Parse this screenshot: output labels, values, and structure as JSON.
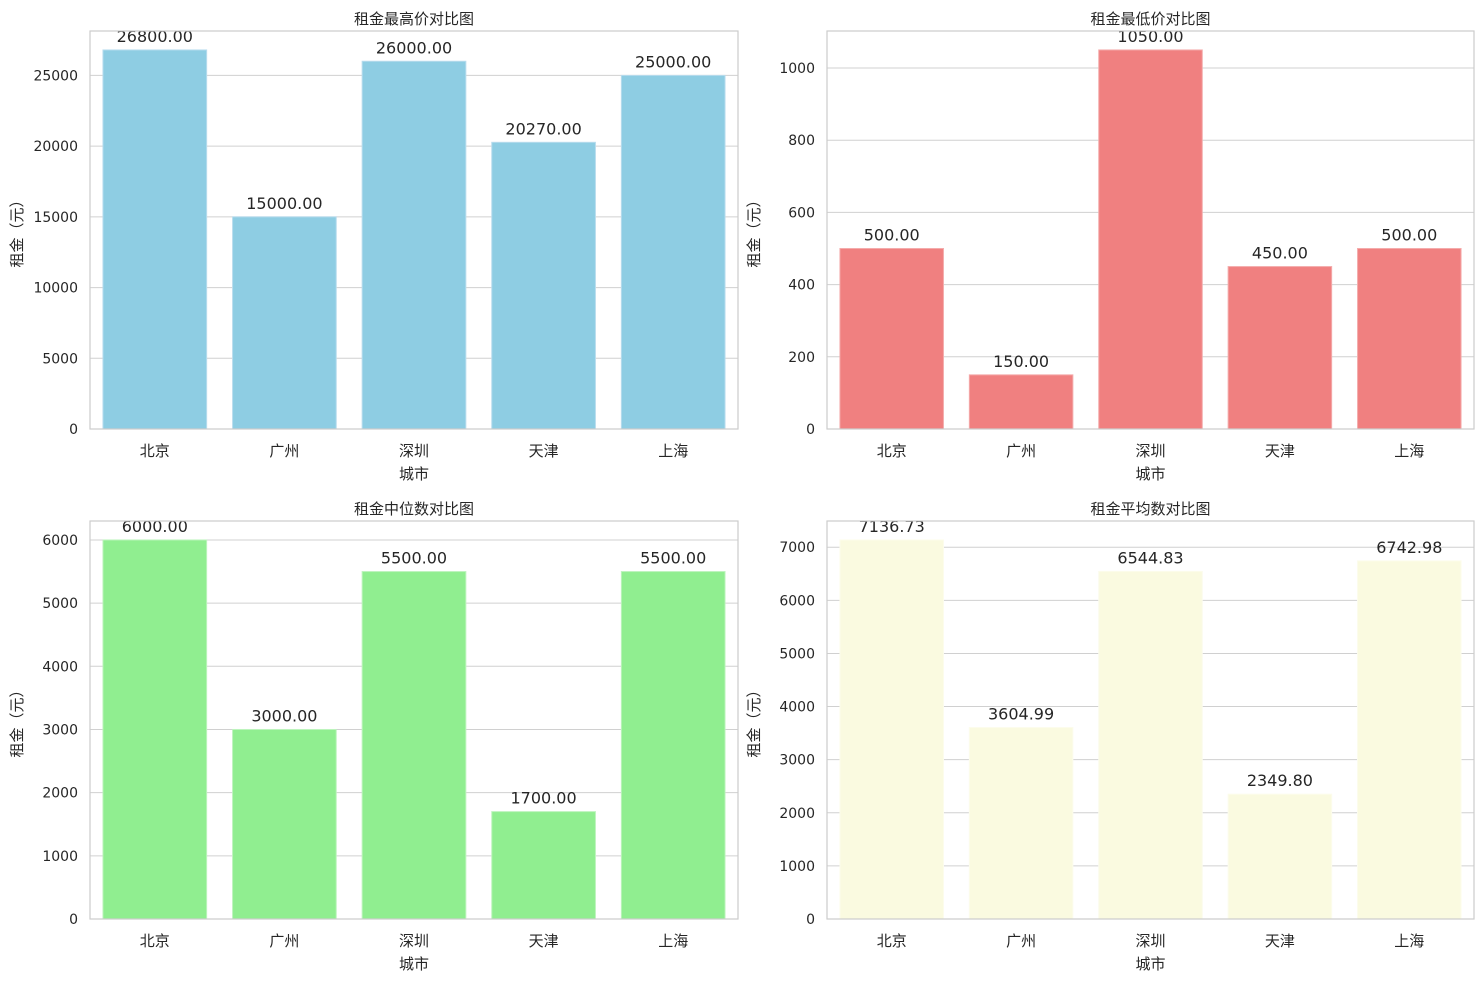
{
  "chart_data": [
    {
      "type": "bar",
      "title": "租金最高价对比图",
      "xlabel": "城市",
      "ylabel": "租金（元）",
      "categories": [
        "北京",
        "广州",
        "深圳",
        "天津",
        "上海"
      ],
      "values": [
        26800.0,
        15000.0,
        26000.0,
        20270.0,
        25000.0
      ],
      "value_labels": [
        "26800.00",
        "15000.00",
        "26000.00",
        "20270.00",
        "25000.00"
      ],
      "ylim": [
        0,
        28140
      ],
      "yticks": [
        0,
        5000,
        10000,
        15000,
        20000,
        25000
      ],
      "grid": true,
      "color": "#8ecde3"
    },
    {
      "type": "bar",
      "title": "租金最低价对比图",
      "xlabel": "城市",
      "ylabel": "租金（元）",
      "categories": [
        "北京",
        "广州",
        "深圳",
        "天津",
        "上海"
      ],
      "values": [
        500.0,
        150.0,
        1050.0,
        450.0,
        500.0
      ],
      "value_labels": [
        "500.00",
        "150.00",
        "1050.00",
        "450.00",
        "500.00"
      ],
      "ylim": [
        0,
        1102.5
      ],
      "yticks": [
        0,
        200,
        400,
        600,
        800,
        1000
      ],
      "grid": true,
      "color": "#f08080"
    },
    {
      "type": "bar",
      "title": "租金中位数对比图",
      "xlabel": "城市",
      "ylabel": "租金（元）",
      "categories": [
        "北京",
        "广州",
        "深圳",
        "天津",
        "上海"
      ],
      "values": [
        6000.0,
        3000.0,
        5500.0,
        1700.0,
        5500.0
      ],
      "value_labels": [
        "6000.00",
        "3000.00",
        "5500.00",
        "1700.00",
        "5500.00"
      ],
      "ylim": [
        0,
        6300
      ],
      "yticks": [
        0,
        1000,
        2000,
        3000,
        4000,
        5000,
        6000
      ],
      "grid": true,
      "color": "#90ee90"
    },
    {
      "type": "bar",
      "title": "租金平均数对比图",
      "xlabel": "城市",
      "ylabel": "租金（元）",
      "categories": [
        "北京",
        "广州",
        "深圳",
        "天津",
        "上海"
      ],
      "values": [
        7136.73,
        3604.99,
        6544.83,
        2349.8,
        6742.98
      ],
      "value_labels": [
        "7136.73",
        "3604.99",
        "6544.83",
        "2349.80",
        "6742.98"
      ],
      "ylim": [
        0,
        7493.57
      ],
      "yticks": [
        0,
        1000,
        2000,
        3000,
        4000,
        5000,
        6000,
        7000
      ],
      "grid": true,
      "color": "#fafae0"
    }
  ]
}
